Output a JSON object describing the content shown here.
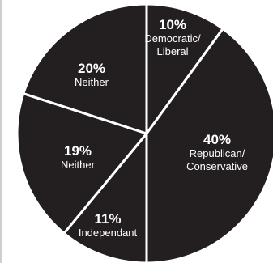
{
  "chart_data": {
    "type": "pie",
    "title": "",
    "slices": [
      {
        "pct_label": "10%",
        "value": 10,
        "label_lines": [
          "Democratic/",
          "Liberal"
        ]
      },
      {
        "pct_label": "40%",
        "value": 40,
        "label_lines": [
          "Republican/",
          "Conservative"
        ]
      },
      {
        "pct_label": "11%",
        "value": 11,
        "label_lines": [
          "Independant"
        ]
      },
      {
        "pct_label": "19%",
        "value": 19,
        "label_lines": [
          "Neither"
        ]
      },
      {
        "pct_label": "20%",
        "value": 20,
        "label_lines": [
          "Neither"
        ]
      }
    ],
    "colors": {
      "slice_fill": "#231f20",
      "separator": "#ffffff",
      "text": "#ffffff",
      "frame": "#cfcfcf"
    }
  }
}
